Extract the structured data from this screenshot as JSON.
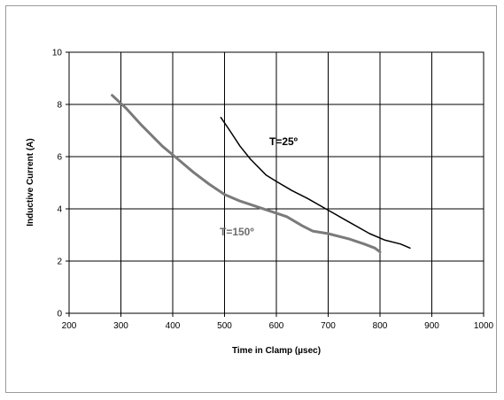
{
  "chart_data": {
    "type": "line",
    "xlabel": "Time in Clamp (µsec)",
    "ylabel": "Inductive Current (A)",
    "xlim": [
      200,
      1000
    ],
    "ylim": [
      0,
      10
    ],
    "xticks": [
      200,
      300,
      400,
      500,
      600,
      700,
      800,
      900,
      1000
    ],
    "yticks": [
      0,
      2,
      4,
      6,
      8,
      10
    ],
    "grid": true,
    "series": [
      {
        "name": "T=25º",
        "color": "#000000",
        "x": [
          493,
          510,
          530,
          550,
          580,
          600,
          630,
          660,
          700,
          740,
          780,
          810,
          840,
          858
        ],
        "y": [
          7.5,
          7.0,
          6.4,
          5.9,
          5.3,
          5.05,
          4.7,
          4.4,
          3.95,
          3.5,
          3.05,
          2.8,
          2.65,
          2.5
        ]
      },
      {
        "name": "T=150º",
        "color": "#7a7a7a",
        "x": [
          283,
          310,
          340,
          380,
          410,
          440,
          470,
          500,
          530,
          560,
          590,
          620,
          650,
          670,
          700,
          740,
          770,
          790,
          800
        ],
        "y": [
          8.35,
          7.85,
          7.2,
          6.4,
          5.9,
          5.4,
          4.95,
          4.55,
          4.3,
          4.1,
          3.9,
          3.7,
          3.35,
          3.15,
          3.05,
          2.85,
          2.65,
          2.5,
          2.35
        ]
      }
    ]
  }
}
